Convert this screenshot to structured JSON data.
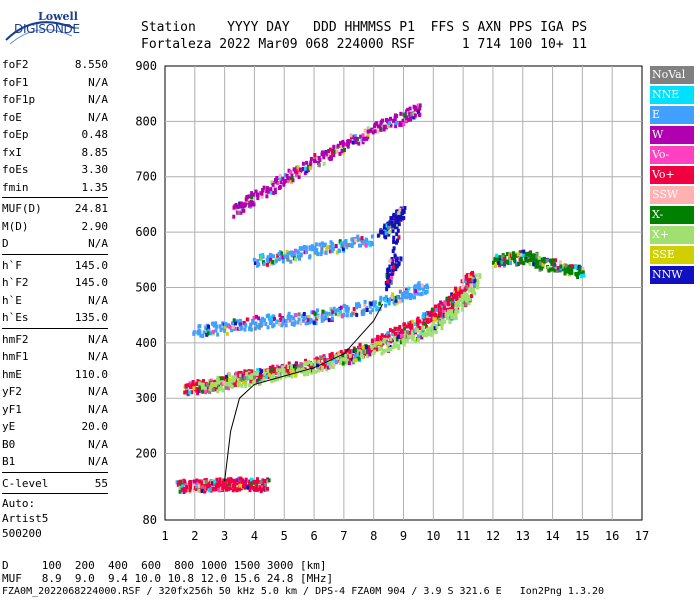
{
  "logo": {
    "line1": "Lowell",
    "line2": "DIGISONDE"
  },
  "header": {
    "row1": "Station    YYYY DAY   DDD HHMMSS P1  FFS S AXN PPS IGA PS",
    "row2": "Fortaleza 2022 Mar09 068 224000 RSF      1 714 100 10+ 11"
  },
  "params": [
    {
      "group": [
        {
          "label": "foF2",
          "value": "8.550"
        },
        {
          "label": "foF1",
          "value": "N/A"
        },
        {
          "label": "foF1p",
          "value": "N/A"
        },
        {
          "label": "foE",
          "value": "N/A"
        },
        {
          "label": "foEp",
          "value": "0.48"
        },
        {
          "label": "fxI",
          "value": "8.85"
        },
        {
          "label": "foEs",
          "value": "3.30"
        },
        {
          "label": "fmin",
          "value": "1.35"
        }
      ]
    },
    {
      "group": [
        {
          "label": "MUF(D)",
          "value": "24.81"
        },
        {
          "label": "M(D)",
          "value": "2.90"
        },
        {
          "label": "D",
          "value": "N/A"
        }
      ]
    },
    {
      "group": [
        {
          "label": "h`F",
          "value": "145.0"
        },
        {
          "label": "h`F2",
          "value": "145.0"
        },
        {
          "label": "h`E",
          "value": "N/A"
        },
        {
          "label": "h`Es",
          "value": "135.0"
        }
      ]
    },
    {
      "group": [
        {
          "label": "hmF2",
          "value": "N/A"
        },
        {
          "label": "hmF1",
          "value": "N/A"
        },
        {
          "label": "hmE",
          "value": "110.0"
        },
        {
          "label": "yF2",
          "value": "N/A"
        },
        {
          "label": "yF1",
          "value": "N/A"
        },
        {
          "label": "yE",
          "value": "20.0"
        },
        {
          "label": "B0",
          "value": "N/A"
        },
        {
          "label": "B1",
          "value": "N/A"
        }
      ]
    },
    {
      "group": [
        {
          "label": "C-level",
          "value": "55"
        }
      ]
    }
  ],
  "auto": {
    "line1": "Auto:",
    "line2": "Artist5",
    "line3": "500200"
  },
  "legend": [
    {
      "label": "NoVal",
      "color": "#808080"
    },
    {
      "label": "NNE",
      "color": "#00e0ff"
    },
    {
      "label": "E",
      "color": "#40a0ff"
    },
    {
      "label": "W",
      "color": "#b000b0"
    },
    {
      "label": "Vo-",
      "color": "#ff40c0"
    },
    {
      "label": "Vo+",
      "color": "#f00040"
    },
    {
      "label": "SSW",
      "color": "#ffb0b0"
    },
    {
      "label": "X-",
      "color": "#008000"
    },
    {
      "label": "X+",
      "color": "#a0e070"
    },
    {
      "label": "SSE",
      "color": "#d0d000"
    },
    {
      "label": "NNW",
      "color": "#1010c0"
    }
  ],
  "chart_data": {
    "type": "scatter",
    "xlim": [
      1,
      17
    ],
    "ylim": [
      80,
      900
    ],
    "xticks": [
      1,
      2,
      3,
      4,
      5,
      6,
      7,
      8,
      9,
      10,
      11,
      12,
      13,
      14,
      15,
      16,
      17
    ],
    "yticks": [
      80,
      200,
      300,
      400,
      500,
      600,
      700,
      800,
      900
    ],
    "traces": [
      {
        "name": "O-trace F",
        "color": "#f00040",
        "points": [
          [
            1.6,
            320
          ],
          [
            2.2,
            325
          ],
          [
            3,
            335
          ],
          [
            4,
            345
          ],
          [
            5,
            355
          ],
          [
            6,
            365
          ],
          [
            7,
            378
          ],
          [
            7.8,
            395
          ],
          [
            8.5,
            415
          ],
          [
            9.2,
            430
          ],
          [
            9.8,
            450
          ],
          [
            10.4,
            470
          ],
          [
            10.9,
            500
          ],
          [
            11.3,
            530
          ]
        ]
      },
      {
        "name": "X-trace F",
        "color": "#a0e070",
        "points": [
          [
            2.2,
            322
          ],
          [
            3,
            330
          ],
          [
            4,
            340
          ],
          [
            5,
            350
          ],
          [
            6,
            362
          ],
          [
            7,
            375
          ],
          [
            8,
            392
          ],
          [
            9,
            410
          ],
          [
            9.8,
            425
          ],
          [
            10.5,
            450
          ],
          [
            11,
            480
          ],
          [
            11.5,
            520
          ]
        ]
      },
      {
        "name": "Es trace",
        "color": "#f00040",
        "points": [
          [
            1.4,
            145
          ],
          [
            2,
            145
          ],
          [
            2.5,
            146
          ],
          [
            3,
            148
          ],
          [
            3.5,
            148
          ],
          [
            4,
            147
          ],
          [
            4.4,
            146
          ]
        ]
      },
      {
        "name": "Multihop F",
        "color": "#b000b0",
        "points": [
          [
            3.3,
            640
          ],
          [
            4,
            665
          ],
          [
            5,
            700
          ],
          [
            6,
            730
          ],
          [
            7,
            760
          ],
          [
            8,
            790
          ],
          [
            9,
            810
          ],
          [
            9.5,
            825
          ]
        ]
      },
      {
        "name": "E-direction diffuse",
        "color": "#40a0ff",
        "points": [
          [
            2,
            425
          ],
          [
            3,
            430
          ],
          [
            4,
            440
          ],
          [
            5,
            445
          ],
          [
            6,
            450
          ],
          [
            7,
            460
          ],
          [
            8,
            470
          ],
          [
            9,
            490
          ],
          [
            9.8,
            505
          ]
        ]
      },
      {
        "name": "Upper E-direction diffuse",
        "color": "#40a0ff",
        "points": [
          [
            4,
            550
          ],
          [
            5,
            560
          ],
          [
            6,
            570
          ],
          [
            7,
            580
          ],
          [
            8,
            590
          ]
        ]
      },
      {
        "name": "NNW high",
        "color": "#1010c0",
        "points": [
          [
            8.2,
            600
          ],
          [
            8.6,
            620
          ],
          [
            8.9,
            640
          ],
          [
            8.4,
            510
          ],
          [
            8.8,
            560
          ]
        ]
      },
      {
        "name": "Far oblique",
        "color": "#008000",
        "points": [
          [
            12,
            550
          ],
          [
            12.6,
            555
          ],
          [
            13.2,
            560
          ],
          [
            13.6,
            545
          ],
          [
            14.3,
            540
          ],
          [
            15,
            530
          ]
        ]
      }
    ],
    "profile": [
      [
        3.0,
        150
      ],
      [
        3.2,
        240
      ],
      [
        3.5,
        300
      ],
      [
        4,
        325
      ],
      [
        5,
        340
      ],
      [
        6,
        355
      ],
      [
        7,
        380
      ],
      [
        7.5,
        410
      ],
      [
        8,
        440
      ],
      [
        8.3,
        470
      ]
    ]
  },
  "footer": {
    "line1": "D     100  200  400  600  800 1000 1500 3000 [km]",
    "line2": "MUF   8.9  9.0  9.4 10.0 10.8 12.0 15.6 24.8 [MHz]",
    "line3": "FZA0M_2022068224000.RSF / 320fx256h 50 kHz 5.0 km / DPS-4 FZA0M 904 / 3.9 S 321.6 E   Ion2Png 1.3.20"
  }
}
